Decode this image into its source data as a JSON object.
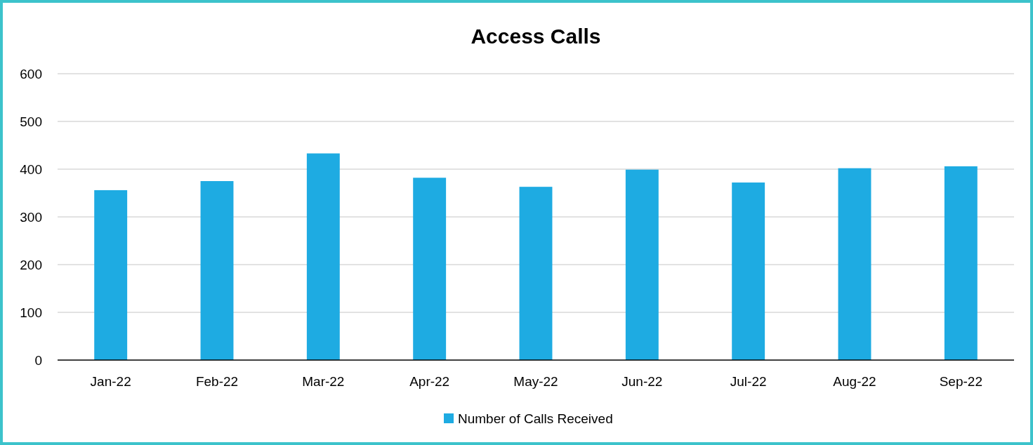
{
  "chart_data": {
    "type": "bar",
    "title": "Access Calls",
    "categories": [
      "Jan-22",
      "Feb-22",
      "Mar-22",
      "Apr-22",
      "May-22",
      "Jun-22",
      "Jul-22",
      "Aug-22",
      "Sep-22"
    ],
    "series": [
      {
        "name": "Number of Calls Received",
        "color": "#1eabe2",
        "values": [
          356,
          375,
          433,
          382,
          363,
          399,
          372,
          402,
          406
        ]
      }
    ],
    "ylim": [
      0,
      600
    ],
    "yticks": [
      0,
      100,
      200,
      300,
      400,
      500,
      600
    ],
    "grid": "y",
    "legend": "bottom"
  }
}
